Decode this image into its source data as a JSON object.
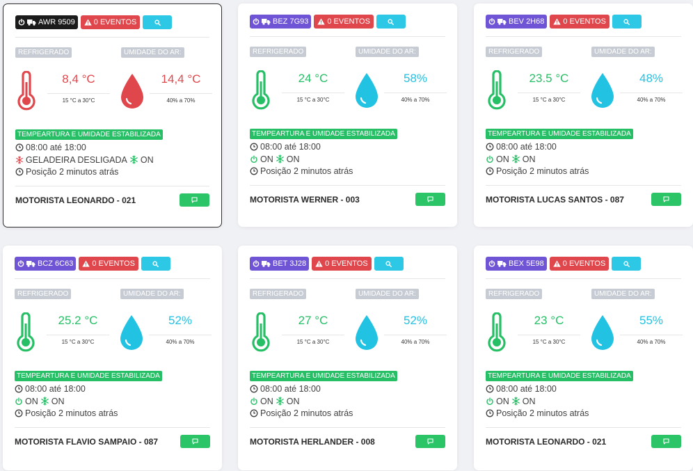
{
  "colors": {
    "alert": "#e0474c",
    "ok": "#26bf66",
    "humidity": "#22c2e3",
    "plate": "#6f54d6",
    "plate_selected": "#1b1b1b"
  },
  "labels": {
    "refrigerated": "REFRIGERADO",
    "humidity": "UMIDADE DO AR:",
    "temp_range": "15 °C a 30°C",
    "humidity_range": "40% a 70%",
    "status": "TEMPEARTURA E UMIDADE ESTABILIZADA",
    "schedule": "08:00 até 18:00",
    "position": "Posição 2 minutos atrás"
  },
  "cards": [
    {
      "plate": "AWR 9509",
      "events": "0 EVENTOS",
      "temperature": "8,4 °C",
      "humidity": "14,4 °C",
      "alert": true,
      "power_text": "GELADEIRA DESLIGADA",
      "fridge_text": "ON",
      "driver": "MOTORISTA LEONARDO - 021",
      "selected": true
    },
    {
      "plate": "BEZ 7G93",
      "events": "0 EVENTOS",
      "temperature": "24 °C",
      "humidity": "58%",
      "alert": false,
      "power_text": "ON",
      "fridge_text": "ON",
      "driver": "MOTORISTA WERNER - 003",
      "selected": false
    },
    {
      "plate": "BEV 2H68",
      "events": "0 EVENTOS",
      "temperature": "23.5 °C",
      "humidity": "48%",
      "alert": false,
      "power_text": "ON",
      "fridge_text": "ON",
      "driver": "MOTORISTA LUCAS SANTOS - 087",
      "selected": false
    },
    {
      "plate": "BCZ 6C63",
      "events": "0 EVENTOS",
      "temperature": "25.2 °C",
      "humidity": "52%",
      "alert": false,
      "power_text": "ON",
      "fridge_text": "ON",
      "driver": "MOTORISTA FLAVIO SAMPAIO - 087",
      "selected": false
    },
    {
      "plate": "BET 3J28",
      "events": "0 EVENTOS",
      "temperature": "27 °C",
      "humidity": "52%",
      "alert": false,
      "power_text": "ON",
      "fridge_text": "ON",
      "driver": "MOTORISTA HERLANDER - 008",
      "selected": false
    },
    {
      "plate": "BEX 5E98",
      "events": "0 EVENTOS",
      "temperature": "23 °C",
      "humidity": "55%",
      "alert": false,
      "power_text": "ON",
      "fridge_text": "ON",
      "driver": "MOTORISTA LEONARDO - 021",
      "selected": false
    }
  ]
}
